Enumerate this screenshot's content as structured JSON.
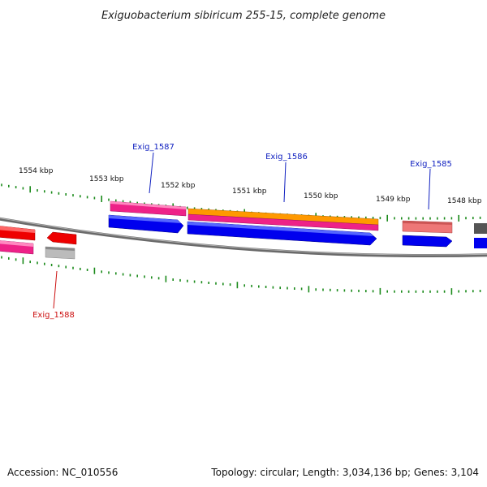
{
  "title": "Exiguobacterium sibiricum 255-15, complete genome",
  "footer": {
    "accession": "Accession: NC_010556",
    "summary": "Topology: circular; Length: 3,034,136 bp; Genes: 3,104"
  },
  "colors": {
    "backbone": "#777777",
    "tick": "#1a8a1a",
    "label_blue": "#1020c0",
    "label_red": "#cc1010",
    "cds_blue": "#0000ee",
    "cds_pink": "#ee2288",
    "cds_orange": "#ff9900",
    "cds_red": "#ee0000",
    "cds_salmon": "#ee7777",
    "cds_grey": "#aaaaaa",
    "cds_dark": "#555555"
  },
  "chart_data": {
    "type": "genome-map",
    "kbp_labels": [
      "1554 kbp",
      "1553 kbp",
      "1552 kbp",
      "1551 kbp",
      "1550 kbp",
      "1549 kbp",
      "1548 kbp"
    ],
    "gene_labels": [
      {
        "name": "Exig_1587",
        "color": "blue"
      },
      {
        "name": "Exig_1586",
        "color": "blue"
      },
      {
        "name": "Exig_1585",
        "color": "blue"
      },
      {
        "name": "Exig_1588",
        "color": "red"
      }
    ]
  }
}
